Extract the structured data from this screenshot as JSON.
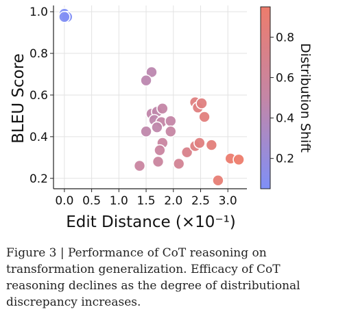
{
  "chart_data": {
    "type": "scatter",
    "xlabel": "Edit Distance (×10⁻¹)",
    "ylabel": "BLEU Score",
    "xlim": [
      -0.2,
      3.35
    ],
    "ylim": [
      0.15,
      1.03
    ],
    "xticks": [
      "0.0",
      "0.5",
      "1.0",
      "1.5",
      "2.0",
      "2.5",
      "3.0"
    ],
    "xtick_values": [
      0.0,
      0.5,
      1.0,
      1.5,
      2.0,
      2.5,
      3.0
    ],
    "yticks": [
      "0.2",
      "0.4",
      "0.6",
      "0.8",
      "1.0"
    ],
    "ytick_values": [
      0.2,
      0.4,
      0.6,
      0.8,
      1.0
    ],
    "grid": true,
    "colorbar": {
      "label": "Distribution Shift",
      "range": [
        0.05,
        0.95
      ],
      "ticks": [
        "0.2",
        "0.4",
        "0.6",
        "0.8"
      ],
      "tick_values": [
        0.2,
        0.4,
        0.6,
        0.8
      ],
      "colormap": [
        "#7f8ff7",
        "#c486a6",
        "#ed7c6c"
      ]
    },
    "points": [
      {
        "x": 0.0,
        "y": 0.99,
        "shift": 0.05
      },
      {
        "x": 0.05,
        "y": 0.975,
        "shift": 0.06
      },
      {
        "x": 0.0,
        "y": 0.975,
        "shift": 0.07
      },
      {
        "x": 1.6,
        "y": 0.71,
        "shift": 0.45
      },
      {
        "x": 1.5,
        "y": 0.67,
        "shift": 0.45
      },
      {
        "x": 1.6,
        "y": 0.51,
        "shift": 0.48
      },
      {
        "x": 1.7,
        "y": 0.52,
        "shift": 0.47
      },
      {
        "x": 1.8,
        "y": 0.535,
        "shift": 0.5
      },
      {
        "x": 1.65,
        "y": 0.48,
        "shift": 0.46
      },
      {
        "x": 1.78,
        "y": 0.47,
        "shift": 0.5
      },
      {
        "x": 1.95,
        "y": 0.475,
        "shift": 0.5
      },
      {
        "x": 1.7,
        "y": 0.445,
        "shift": 0.47
      },
      {
        "x": 1.5,
        "y": 0.425,
        "shift": 0.47
      },
      {
        "x": 1.95,
        "y": 0.425,
        "shift": 0.52
      },
      {
        "x": 1.8,
        "y": 0.37,
        "shift": 0.55
      },
      {
        "x": 1.75,
        "y": 0.335,
        "shift": 0.55
      },
      {
        "x": 1.72,
        "y": 0.28,
        "shift": 0.56
      },
      {
        "x": 1.38,
        "y": 0.26,
        "shift": 0.55
      },
      {
        "x": 2.1,
        "y": 0.27,
        "shift": 0.65
      },
      {
        "x": 2.25,
        "y": 0.325,
        "shift": 0.72
      },
      {
        "x": 2.4,
        "y": 0.355,
        "shift": 0.78
      },
      {
        "x": 2.48,
        "y": 0.37,
        "shift": 0.8
      },
      {
        "x": 2.4,
        "y": 0.565,
        "shift": 0.8
      },
      {
        "x": 2.45,
        "y": 0.54,
        "shift": 0.8
      },
      {
        "x": 2.52,
        "y": 0.56,
        "shift": 0.8
      },
      {
        "x": 2.57,
        "y": 0.495,
        "shift": 0.82
      },
      {
        "x": 2.7,
        "y": 0.36,
        "shift": 0.84
      },
      {
        "x": 2.82,
        "y": 0.19,
        "shift": 0.88
      },
      {
        "x": 3.05,
        "y": 0.295,
        "shift": 0.93
      },
      {
        "x": 3.2,
        "y": 0.29,
        "shift": 0.95
      }
    ]
  },
  "caption": {
    "text": "Figure 3 | Performance of CoT reasoning on transformation generalization. Efficacy of CoT reasoning declines as the degree of distributional discrepancy increases."
  }
}
